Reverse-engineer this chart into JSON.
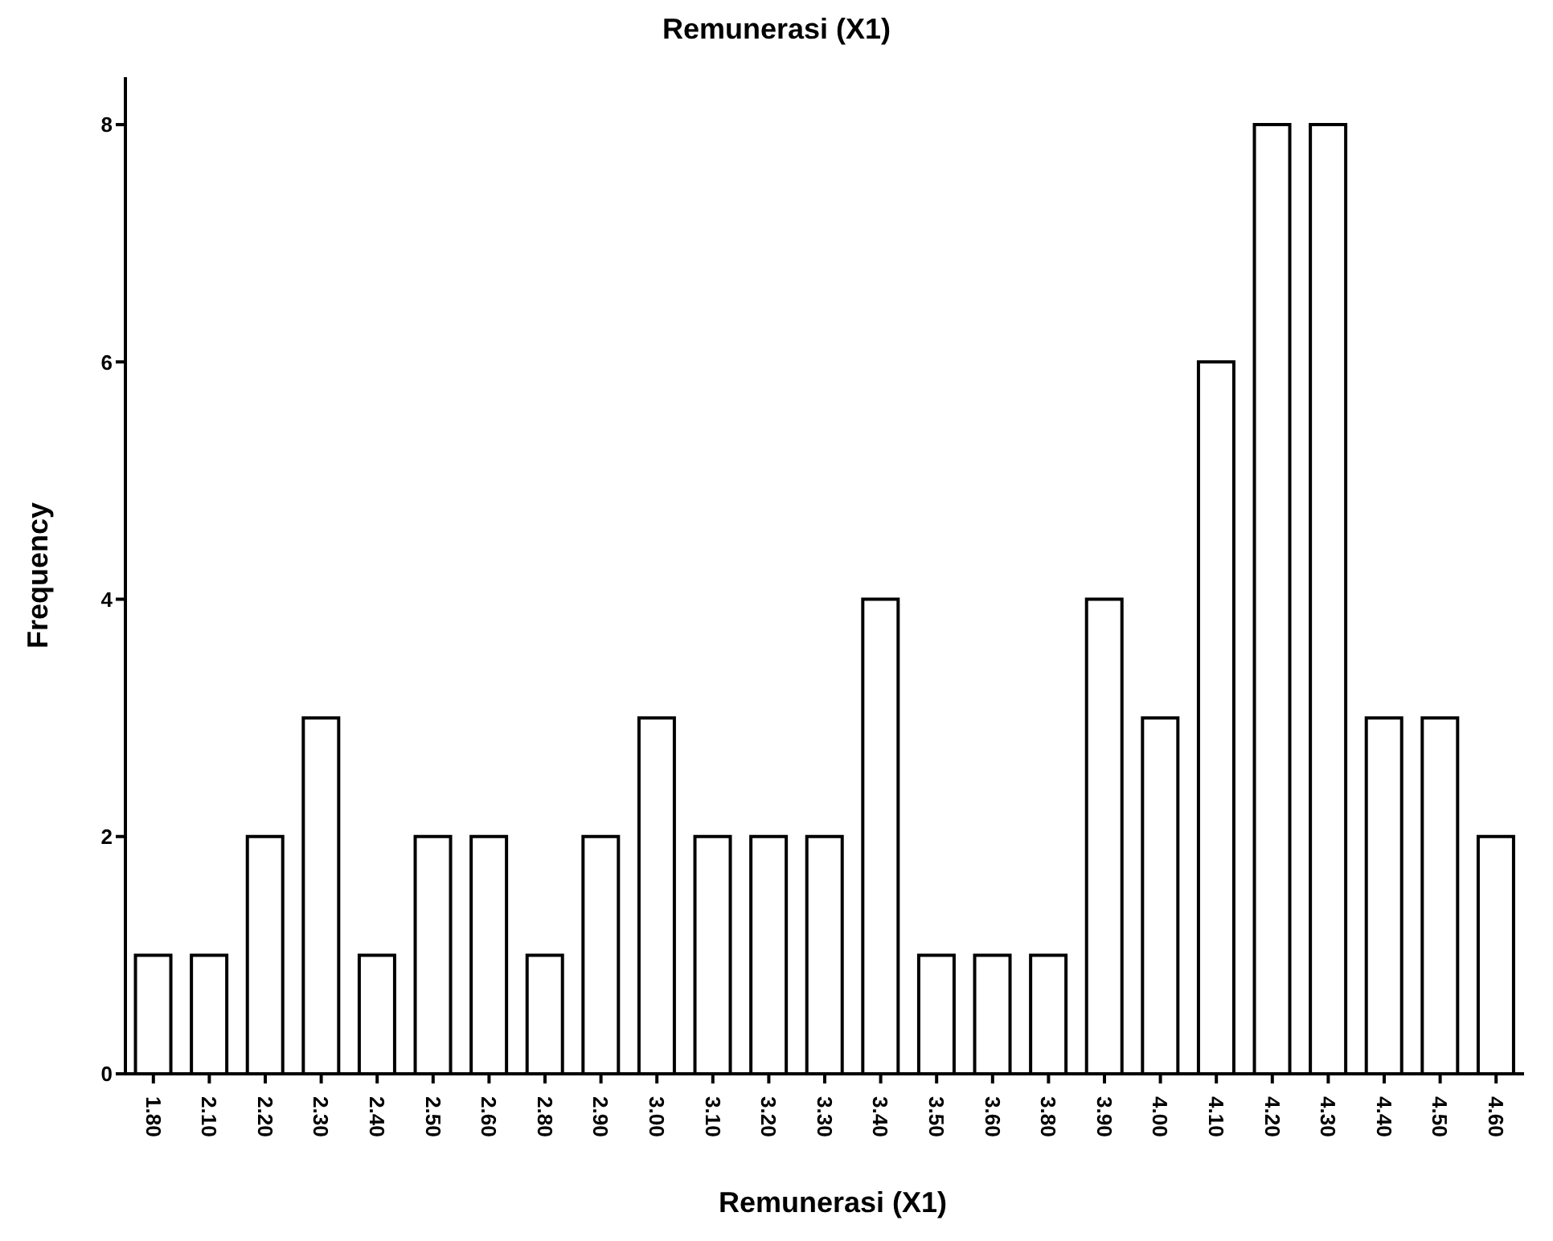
{
  "chart_data": {
    "type": "bar",
    "title": "Remunerasi (X1)",
    "xlabel": "Remunerasi (X1)",
    "ylabel": "Frequency",
    "categories": [
      "1.80",
      "2.10",
      "2.20",
      "2.30",
      "2.40",
      "2.50",
      "2.60",
      "2.80",
      "2.90",
      "3.00",
      "3.10",
      "3.20",
      "3.30",
      "3.40",
      "3.50",
      "3.60",
      "3.80",
      "3.90",
      "4.00",
      "4.10",
      "4.20",
      "4.30",
      "4.40",
      "4.50",
      "4.60"
    ],
    "values": [
      1,
      1,
      2,
      3,
      1,
      2,
      2,
      1,
      2,
      3,
      2,
      2,
      2,
      4,
      1,
      1,
      1,
      4,
      3,
      6,
      8,
      8,
      3,
      3,
      2
    ],
    "color": "#ffffff",
    "ylim": [
      0,
      8.4
    ],
    "yticks": [
      0,
      2,
      4,
      6,
      8
    ],
    "grid": false,
    "legend": false
  }
}
